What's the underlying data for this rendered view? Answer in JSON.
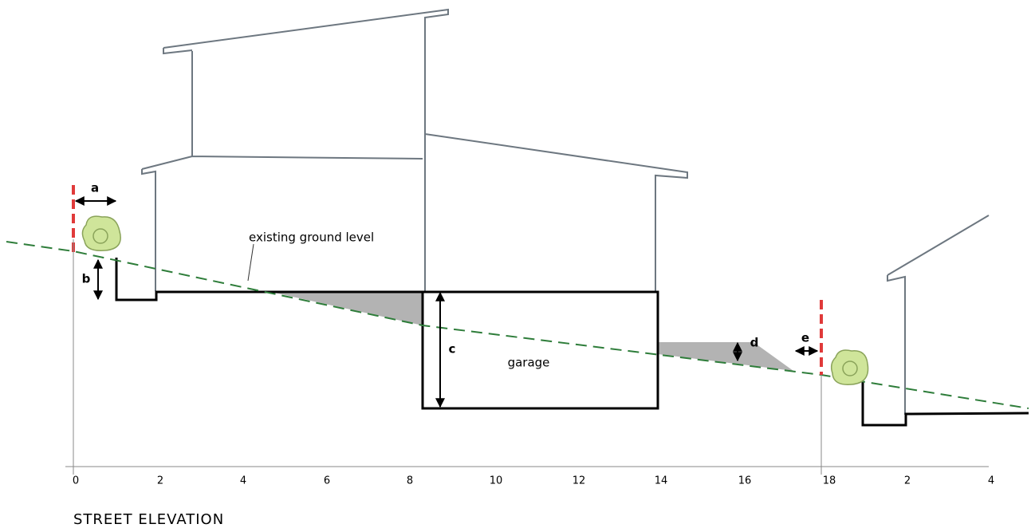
{
  "diagram": {
    "title": "STREET ELEVATION",
    "labels": {
      "a": "a",
      "b": "b",
      "c": "c",
      "d": "d",
      "e": "e",
      "ground": "existing ground level",
      "garage": "garage"
    },
    "axis_labels": [
      "0",
      "2",
      "4",
      "6",
      "8",
      "10",
      "12",
      "14",
      "16",
      "18",
      "2",
      "4"
    ]
  }
}
